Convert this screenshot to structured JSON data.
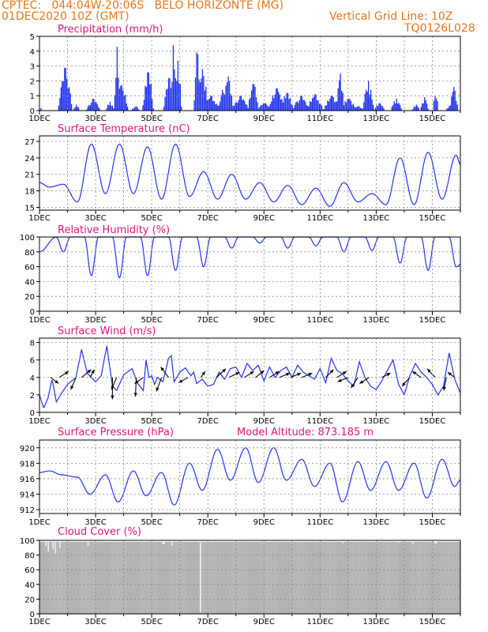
{
  "header": {
    "line1": "CPTEC:   044:04W-20:06S   BELO HORIZONTE (MG)",
    "line2": "01DEC2020 10Z (GMT)",
    "grid_note": "Vertical Grid Line: 10Z",
    "code": "TQ0126L028",
    "color": "#e8741c"
  },
  "colors": {
    "title": "#e0147e",
    "series": "#2233ee",
    "cloud": "#b3b3b3",
    "grid": "#888888"
  },
  "x_ticks": [
    "1DEC",
    "3DEC",
    "5DEC",
    "7DEC",
    "9DEC",
    "11DEC",
    "13DEC",
    "15DEC"
  ],
  "x_range_days": [
    0,
    15
  ],
  "chart_data": [
    {
      "type": "bar",
      "title": "Precipitation (mm/h)",
      "ylim": [
        0,
        5
      ],
      "yticks": [
        0,
        1,
        2,
        3,
        4,
        5
      ],
      "bursts": [
        {
          "day": 0.03,
          "peak": 0.2,
          "width": 0.05
        },
        {
          "day": 0.9,
          "peak": 2.9,
          "width": 0.25
        },
        {
          "day": 1.3,
          "peak": 0.4,
          "width": 0.12
        },
        {
          "day": 1.9,
          "peak": 0.8,
          "width": 0.25
        },
        {
          "day": 2.5,
          "peak": 0.6,
          "width": 0.15
        },
        {
          "day": 2.75,
          "peak": 4.3,
          "width": 0.1
        },
        {
          "day": 2.9,
          "peak": 1.7,
          "width": 0.25
        },
        {
          "day": 3.4,
          "peak": 0.3,
          "width": 0.15
        },
        {
          "day": 3.85,
          "peak": 2.6,
          "width": 0.2
        },
        {
          "day": 4.6,
          "peak": 2.2,
          "width": 0.2
        },
        {
          "day": 4.75,
          "peak": 4.4,
          "width": 0.08
        },
        {
          "day": 4.9,
          "peak": 3.4,
          "width": 0.15
        },
        {
          "day": 5.6,
          "peak": 4.0,
          "width": 0.12
        },
        {
          "day": 5.8,
          "peak": 2.8,
          "width": 0.2
        },
        {
          "day": 6.1,
          "peak": 1.0,
          "width": 0.3
        },
        {
          "day": 6.5,
          "peak": 1.4,
          "width": 0.15
        },
        {
          "day": 6.7,
          "peak": 2.3,
          "width": 0.2
        },
        {
          "day": 7.15,
          "peak": 1.0,
          "width": 0.3
        },
        {
          "day": 7.6,
          "peak": 1.8,
          "width": 0.2
        },
        {
          "day": 8.0,
          "peak": 0.5,
          "width": 0.3
        },
        {
          "day": 8.45,
          "peak": 1.5,
          "width": 0.3
        },
        {
          "day": 8.8,
          "peak": 1.2,
          "width": 0.25
        },
        {
          "day": 9.3,
          "peak": 1.0,
          "width": 0.3
        },
        {
          "day": 9.8,
          "peak": 1.1,
          "width": 0.3
        },
        {
          "day": 10.4,
          "peak": 1.0,
          "width": 0.3
        },
        {
          "day": 10.7,
          "peak": 2.5,
          "width": 0.15
        },
        {
          "day": 11.0,
          "peak": 0.8,
          "width": 0.3
        },
        {
          "day": 11.35,
          "peak": 0.3,
          "width": 0.2
        },
        {
          "day": 11.7,
          "peak": 2.0,
          "width": 0.2
        },
        {
          "day": 12.1,
          "peak": 0.5,
          "width": 0.2
        },
        {
          "day": 12.7,
          "peak": 0.8,
          "width": 0.2
        },
        {
          "day": 13.4,
          "peak": 0.4,
          "width": 0.15
        },
        {
          "day": 13.7,
          "peak": 0.9,
          "width": 0.15
        },
        {
          "day": 14.1,
          "peak": 1.2,
          "width": 0.1
        },
        {
          "day": 14.6,
          "peak": 0.3,
          "width": 0.15
        },
        {
          "day": 14.75,
          "peak": 1.6,
          "width": 0.15
        }
      ]
    },
    {
      "type": "line",
      "title": "Surface Temperature (nC)",
      "ylim": [
        14.5,
        28
      ],
      "yticks": [
        15,
        18,
        21,
        24,
        27
      ],
      "series_daily": {
        "min": [
          18.7,
          16.0,
          17.5,
          17.5,
          16.5,
          17.0,
          16.5,
          16.5,
          16.0,
          15.5,
          15.2,
          16.0,
          15.5,
          15.5,
          16.5,
          19.0
        ],
        "max": [
          19.2,
          26.5,
          26.5,
          26.0,
          26.5,
          21.5,
          21.0,
          19.5,
          19.0,
          18.5,
          19.5,
          17.5,
          24.0,
          25.0,
          24.5,
          23.5
        ]
      },
      "min_hour_offset": 0.35,
      "max_hour_offset": 0.85
    },
    {
      "type": "line",
      "title": "Relative Humidity (%)",
      "ylim": [
        0,
        100
      ],
      "yticks": [
        0,
        20,
        40,
        60,
        80,
        100
      ],
      "daily_min": [
        80,
        48,
        45,
        48,
        55,
        60,
        85,
        92,
        85,
        88,
        80,
        82,
        65,
        55,
        60,
        65
      ],
      "min_hour_offset": 0.85
    },
    {
      "type": "line",
      "title": "Surface Wind (m/s)",
      "ylim": [
        0,
        8.5
      ],
      "yticks": [
        0,
        2,
        4,
        6,
        8
      ],
      "points": [
        [
          0,
          2.0
        ],
        [
          0.15,
          0.5
        ],
        [
          0.3,
          1.6
        ],
        [
          0.45,
          3.8
        ],
        [
          0.6,
          1.2
        ],
        [
          0.75,
          2.0
        ],
        [
          1.0,
          3.2
        ],
        [
          1.3,
          4.0
        ],
        [
          1.5,
          7.2
        ],
        [
          1.7,
          4.5
        ],
        [
          2.0,
          3.5
        ],
        [
          2.2,
          4.2
        ],
        [
          2.4,
          7.6
        ],
        [
          2.6,
          3.0
        ],
        [
          2.75,
          2.5
        ],
        [
          3.0,
          4.3
        ],
        [
          3.3,
          5.0
        ],
        [
          3.5,
          3.3
        ],
        [
          3.7,
          2.5
        ],
        [
          3.8,
          6.0
        ],
        [
          3.9,
          4.0
        ],
        [
          4.0,
          4.2
        ],
        [
          4.1,
          3.2
        ],
        [
          4.2,
          4.0
        ],
        [
          4.4,
          3.5
        ],
        [
          4.6,
          6.2
        ],
        [
          4.7,
          6.5
        ],
        [
          4.8,
          3.5
        ],
        [
          5.0,
          4.6
        ],
        [
          5.2,
          5.1
        ],
        [
          5.4,
          4.2
        ],
        [
          5.5,
          4.6
        ],
        [
          5.6,
          3.3
        ],
        [
          5.8,
          3.8
        ],
        [
          6.0,
          3.0
        ],
        [
          6.2,
          3.2
        ],
        [
          6.4,
          4.6
        ],
        [
          6.6,
          3.8
        ],
        [
          6.8,
          5.0
        ],
        [
          7.0,
          5.2
        ],
        [
          7.2,
          4.0
        ],
        [
          7.4,
          5.6
        ],
        [
          7.6,
          4.8
        ],
        [
          7.8,
          5.4
        ],
        [
          8.0,
          3.6
        ],
        [
          8.2,
          5.2
        ],
        [
          8.4,
          4.0
        ],
        [
          8.6,
          4.8
        ],
        [
          8.8,
          5.2
        ],
        [
          9.0,
          4.0
        ],
        [
          9.2,
          5.4
        ],
        [
          9.4,
          4.6
        ],
        [
          9.6,
          4.2
        ],
        [
          9.8,
          3.8
        ],
        [
          10.0,
          5.0
        ],
        [
          10.2,
          3.4
        ],
        [
          10.4,
          6.2
        ],
        [
          10.6,
          4.8
        ],
        [
          10.8,
          4.4
        ],
        [
          11.0,
          3.6
        ],
        [
          11.2,
          3.0
        ],
        [
          11.4,
          5.8
        ],
        [
          11.6,
          4.0
        ],
        [
          11.8,
          3.0
        ],
        [
          12.0,
          2.6
        ],
        [
          12.2,
          3.6
        ],
        [
          12.4,
          4.8
        ],
        [
          12.6,
          6.0
        ],
        [
          12.8,
          3.2
        ],
        [
          13.0,
          2.0
        ],
        [
          13.2,
          4.2
        ],
        [
          13.4,
          5.6
        ],
        [
          13.6,
          4.6
        ],
        [
          13.8,
          4.0
        ],
        [
          14.0,
          3.2
        ],
        [
          14.2,
          2.0
        ],
        [
          14.4,
          3.0
        ],
        [
          14.6,
          6.8
        ],
        [
          14.8,
          3.8
        ],
        [
          15.0,
          2.2
        ]
      ],
      "arrows": [
        [
          0.4,
          0.9,
          -0.7
        ],
        [
          0.7,
          1.1,
          0.7
        ],
        [
          1.5,
          1.1,
          0.9
        ],
        [
          1.3,
          -0.6,
          -1.4
        ],
        [
          1.8,
          0.5,
          0.9
        ],
        [
          2.6,
          0.0,
          -2.5
        ],
        [
          2.75,
          -0.6,
          -1.4
        ],
        [
          3.45,
          -0.1,
          -2.2
        ],
        [
          3.7,
          -1.0,
          -0.7
        ],
        [
          4.35,
          -0.6,
          -1.6
        ],
        [
          4.6,
          -0.9,
          1.2
        ],
        [
          5.3,
          -1.1,
          -0.6
        ],
        [
          5.75,
          0.5,
          0.7
        ],
        [
          6.3,
          1.1,
          1.0
        ],
        [
          6.75,
          1.2,
          0.6
        ],
        [
          7.3,
          1.1,
          0.7
        ],
        [
          7.7,
          1.0,
          0.8
        ],
        [
          8.2,
          1.1,
          0.7
        ],
        [
          8.55,
          1.2,
          0.5
        ],
        [
          8.95,
          1.2,
          0.5
        ],
        [
          9.35,
          1.2,
          0.5
        ],
        [
          10.2,
          0.9,
          0.9
        ],
        [
          10.6,
          1.1,
          0.7
        ],
        [
          11.0,
          -1.2,
          -0.5
        ],
        [
          11.35,
          -0.8,
          -1.2
        ],
        [
          11.75,
          -1.1,
          -0.7
        ],
        [
          12.2,
          1.0,
          0.5
        ],
        [
          13.2,
          -0.9,
          -1.0
        ],
        [
          13.6,
          -1.0,
          0.7
        ],
        [
          14.1,
          -0.9,
          1.0
        ],
        [
          14.5,
          -0.3,
          -1.5
        ],
        [
          14.8,
          -0.8,
          0.6
        ]
      ]
    },
    {
      "type": "line",
      "title": "Surface Pressure (hPa)",
      "annotation": "Model Altitude: 873.185 m",
      "ylim": [
        911.5,
        921
      ],
      "yticks": [
        912,
        914,
        916,
        918,
        920
      ],
      "daily_low": [
        916.5,
        914.0,
        913.0,
        913.8,
        912.6,
        914.5,
        915.8,
        915.5,
        915.8,
        915.0,
        913.0,
        914.5,
        914.5,
        913.5,
        915.0,
        913.0
      ],
      "daily_high": [
        917.0,
        916.2,
        916.5,
        917.0,
        916.8,
        918.0,
        919.8,
        920.0,
        920.0,
        918.5,
        918.0,
        918.2,
        918.2,
        918.0,
        918.5,
        916.2
      ],
      "low_offset": 0.8,
      "high_offset": 0.35
    },
    {
      "type": "area",
      "title": "Cloud Cover (%)",
      "ylim": [
        0,
        100
      ],
      "yticks": [
        0,
        20,
        40,
        60,
        80,
        100
      ],
      "base": 98,
      "dips": [
        [
          0.2,
          92
        ],
        [
          0.3,
          85
        ],
        [
          0.45,
          88
        ],
        [
          0.55,
          82
        ],
        [
          0.7,
          90
        ],
        [
          1.7,
          93
        ],
        [
          4.4,
          95
        ],
        [
          4.7,
          93
        ],
        [
          5.7,
          2
        ],
        [
          9.3,
          97
        ],
        [
          10.8,
          96
        ],
        [
          12.8,
          97
        ],
        [
          13.3,
          95
        ],
        [
          14.1,
          96
        ]
      ]
    }
  ]
}
